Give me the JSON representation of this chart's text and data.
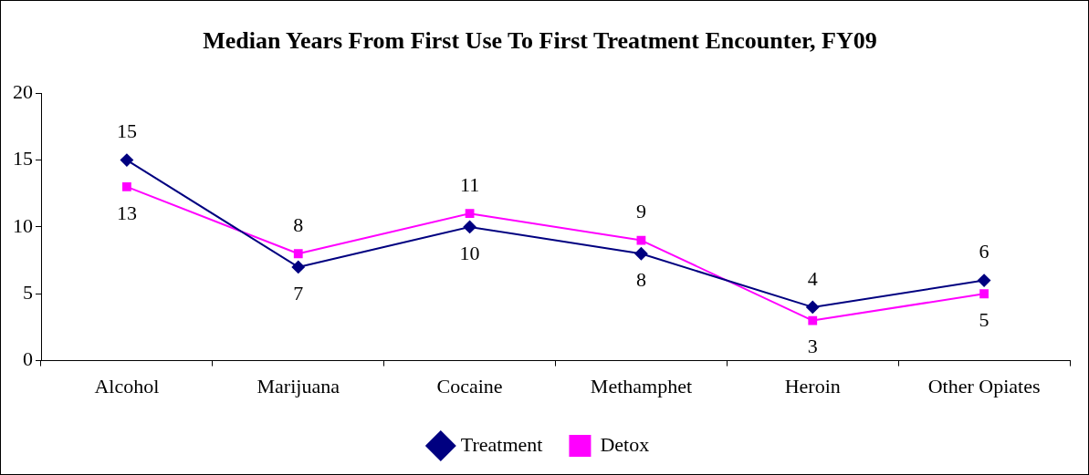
{
  "chart_data": {
    "type": "line",
    "title": "Median Years From First Use To First Treatment Encounter, FY09",
    "categories": [
      "Alcohol",
      "Marijuana",
      "Cocaine",
      "Methamphet",
      "Heroin",
      "Other Opiates"
    ],
    "series": [
      {
        "name": "Treatment",
        "color": "#000080",
        "marker": "diamond",
        "values": [
          15,
          7,
          10,
          8,
          4,
          6
        ]
      },
      {
        "name": "Detox",
        "color": "#ff00ff",
        "marker": "square",
        "values": [
          13,
          8,
          11,
          9,
          3,
          5
        ]
      }
    ],
    "ylim": [
      0,
      20
    ],
    "yticks": [
      0,
      5,
      10,
      15,
      20
    ],
    "grid": false,
    "legend": "bottom",
    "data_labels": true,
    "line_style": "solid"
  }
}
